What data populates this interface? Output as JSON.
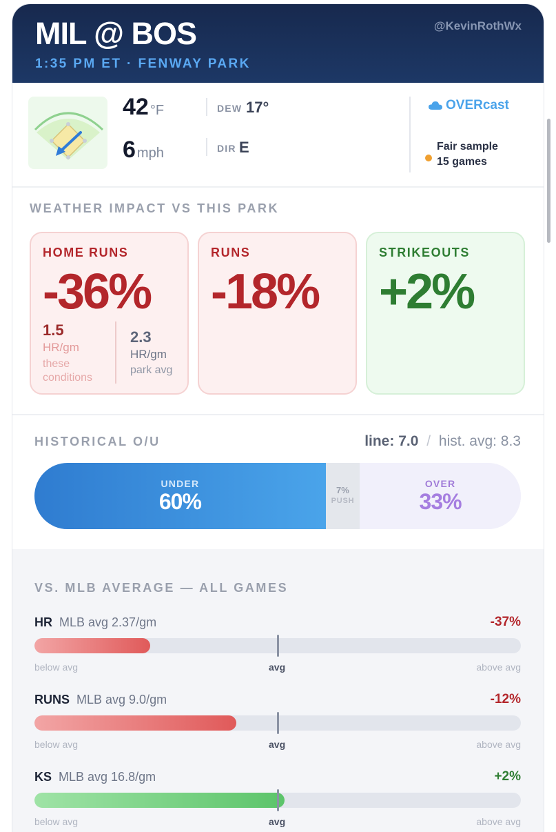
{
  "header": {
    "title": "MIL @ BOS",
    "subtitle": "1:35 PM ET · FENWAY PARK",
    "handle": "@KevinRothWx"
  },
  "weather": {
    "temp_value": "42",
    "temp_unit": "°F",
    "wind_value": "6",
    "wind_unit": "mph",
    "dew_label": "DEW",
    "dew_value": "17°",
    "dir_label": "DIR",
    "dir_value": "E",
    "sky_label": "OVERcast",
    "sample_line1": "Fair sample",
    "sample_line2": "15 games"
  },
  "impact": {
    "heading": "WEATHER IMPACT VS THIS PARK",
    "home_runs": {
      "label": "HOME RUNS",
      "value": "-36%",
      "cond_value": "1.5",
      "cond_unit": "HR/gm",
      "cond_caption1": "these",
      "cond_caption2": "conditions",
      "park_value": "2.3",
      "park_unit": "HR/gm",
      "park_caption": "park avg"
    },
    "runs": {
      "label": "RUNS",
      "value": "-18%"
    },
    "strikeouts": {
      "label": "STRIKEOUTS",
      "value": "+2%"
    }
  },
  "ou": {
    "heading": "HISTORICAL O/U",
    "line_text": "line: 7.0",
    "divider": "/",
    "hist_text": "hist. avg: 8.3",
    "under_label": "UNDER",
    "under_value": "60%",
    "push_value": "7%",
    "push_label": "PUSH",
    "over_label": "OVER",
    "over_value": "33%",
    "under_share": 60,
    "push_share": 7,
    "over_share": 33
  },
  "mlb": {
    "heading": "VS. MLB AVERAGE — ALL GAMES",
    "below_label": "below avg",
    "avg_label": "avg",
    "above_label": "above avg",
    "rows": [
      {
        "name": "HR",
        "avg": "MLB avg 2.37/gm",
        "pct": "-37%",
        "delta": -37,
        "color": "#e05a5a"
      },
      {
        "name": "RUNS",
        "avg": "MLB avg 9.0/gm",
        "pct": "-12%",
        "delta": -12,
        "color": "#e05a5a"
      },
      {
        "name": "KS",
        "avg": "MLB avg 16.8/gm",
        "pct": "+2%",
        "delta": 2,
        "color": "#5cc46a"
      }
    ]
  },
  "colors": {
    "negative": "#b3262b",
    "positive": "#2e7d32",
    "under": "#2f86e0",
    "over": "#a57ee0"
  }
}
